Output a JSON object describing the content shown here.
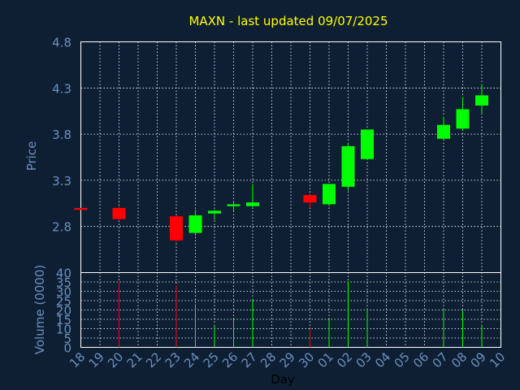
{
  "colors": {
    "background": "#0f1f33",
    "grid": "#ffffff",
    "axis_text": "#6b8fbf",
    "title": "#ffff00",
    "up": "#00ff00",
    "down": "#ff0000",
    "xlabel": "#000000"
  },
  "chart_data": {
    "type": "candlestick",
    "title": "MAXN - last updated 09/07/2025",
    "xlabel": "Day",
    "price_panel": {
      "ylabel": "Price",
      "ylim": [
        2.3,
        4.8
      ],
      "yticks": [
        "2.8",
        "3.3",
        "3.8",
        "4.3",
        "4.8"
      ]
    },
    "volume_panel": {
      "ylabel": "Volume (0000)",
      "ylim": [
        0,
        40
      ],
      "yticks": [
        "0",
        "5",
        "10",
        "15",
        "20",
        "25",
        "30",
        "35",
        "40"
      ]
    },
    "x_ticks": [
      "18",
      "19",
      "20",
      "21",
      "22",
      "23",
      "24",
      "25",
      "26",
      "27",
      "28",
      "29",
      "30",
      "01",
      "02",
      "03",
      "04",
      "05",
      "06",
      "07",
      "08",
      "09",
      "10"
    ],
    "candles": [
      {
        "day": "18",
        "open": 3.0,
        "close": 2.98,
        "high": 3.0,
        "low": 2.98,
        "volume": 0,
        "dir": "down"
      },
      {
        "day": "20",
        "open": 3.0,
        "close": 2.88,
        "high": 3.03,
        "low": 2.86,
        "volume": 35,
        "dir": "down"
      },
      {
        "day": "23",
        "open": 2.91,
        "close": 2.65,
        "high": 2.92,
        "low": 2.63,
        "volume": 33,
        "dir": "down"
      },
      {
        "day": "24",
        "open": 2.73,
        "close": 2.92,
        "high": 2.98,
        "low": 2.7,
        "volume": 23,
        "dir": "up"
      },
      {
        "day": "25",
        "open": 2.94,
        "close": 2.97,
        "high": 2.98,
        "low": 2.87,
        "volume": 12,
        "dir": "up"
      },
      {
        "day": "26",
        "open": 3.02,
        "close": 3.04,
        "high": 3.06,
        "low": 2.96,
        "volume": 15,
        "dir": "up"
      },
      {
        "day": "27",
        "open": 3.02,
        "close": 3.06,
        "high": 3.26,
        "low": 3.01,
        "volume": 26,
        "dir": "up"
      },
      {
        "day": "30",
        "open": 3.14,
        "close": 3.06,
        "high": 3.14,
        "low": 3.0,
        "volume": 10,
        "dir": "down"
      },
      {
        "day": "01",
        "open": 3.04,
        "close": 3.26,
        "high": 3.26,
        "low": 3.02,
        "volume": 15,
        "dir": "up"
      },
      {
        "day": "02",
        "open": 3.23,
        "close": 3.67,
        "high": 3.71,
        "low": 3.19,
        "volume": 35,
        "dir": "up"
      },
      {
        "day": "03",
        "open": 3.53,
        "close": 3.85,
        "high": 3.85,
        "low": 3.52,
        "volume": 21,
        "dir": "up"
      },
      {
        "day": "07",
        "open": 3.75,
        "close": 3.9,
        "high": 3.99,
        "low": 3.74,
        "volume": 20,
        "dir": "up"
      },
      {
        "day": "08",
        "open": 3.86,
        "close": 4.07,
        "high": 4.2,
        "low": 3.84,
        "volume": 20,
        "dir": "up"
      },
      {
        "day": "09",
        "open": 4.11,
        "close": 4.22,
        "high": 4.34,
        "low": 4.03,
        "volume": 12,
        "dir": "up"
      }
    ]
  }
}
